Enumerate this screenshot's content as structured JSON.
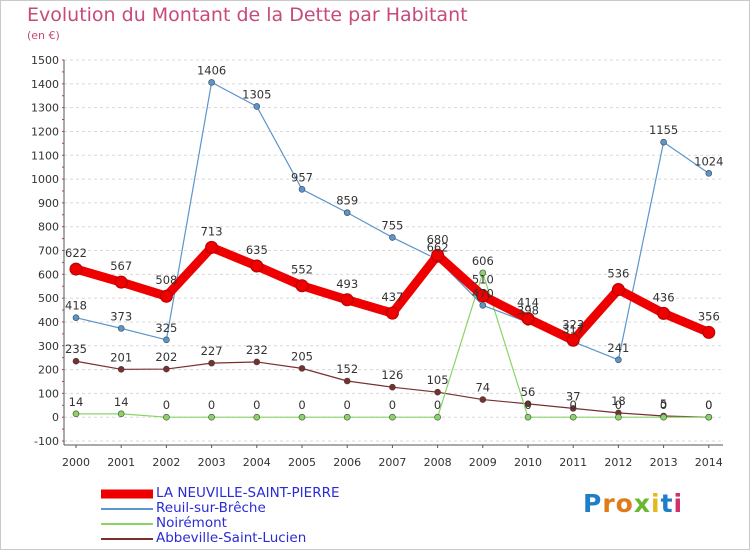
{
  "title": "Evolution du Montant de la Dette par Habitant",
  "subtitle": "(en €)",
  "logo": "Proxiti",
  "colors": {
    "title": "#c64a7b",
    "legend_text": "#2b2bd6",
    "grid": "#d8d8d8",
    "axis": "#555555"
  },
  "chart_data": {
    "type": "line",
    "title": "Evolution du Montant de la Dette par Habitant",
    "ylabel": "(en €)",
    "ylim": [
      -100,
      1500
    ],
    "yticks": [
      -100,
      0,
      100,
      200,
      300,
      400,
      500,
      600,
      700,
      800,
      900,
      1000,
      1100,
      1200,
      1300,
      1400,
      1500
    ],
    "x": [
      "2000",
      "2001",
      "2002",
      "2003",
      "2004",
      "2005",
      "2006",
      "2007",
      "2008",
      "2009",
      "2010",
      "2011",
      "2012",
      "2013",
      "2014"
    ],
    "grid": "horizontal dashed",
    "legend_position": "bottom-left",
    "series": [
      {
        "name": "LA NEUVILLE-SAINT-PIERRE",
        "color": "#ee0000",
        "values": [
          622,
          567,
          508,
          713,
          635,
          552,
          493,
          437,
          680,
          510,
          414,
          323,
          536,
          436,
          356
        ]
      },
      {
        "name": "Reuil-sur-Brêche",
        "color": "#5b95cc",
        "values": [
          418,
          373,
          325,
          1406,
          1305,
          957,
          859,
          755,
          662,
          470,
          398,
          317,
          241,
          1155,
          1024
        ]
      },
      {
        "name": "Noirémont",
        "color": "#88d465",
        "values": [
          14,
          14,
          0,
          0,
          0,
          0,
          0,
          0,
          0,
          606,
          0,
          0,
          0,
          0,
          0
        ]
      },
      {
        "name": "Abbeville-Saint-Lucien",
        "color": "#7a2e2e",
        "values": [
          235,
          201,
          202,
          227,
          232,
          205,
          152,
          126,
          105,
          74,
          56,
          37,
          18,
          5,
          0
        ]
      }
    ]
  }
}
